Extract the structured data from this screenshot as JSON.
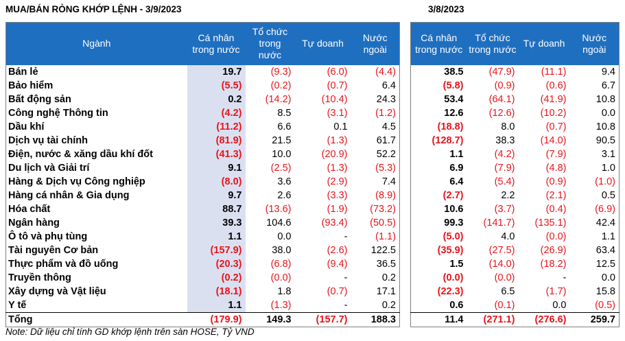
{
  "title_left": "MUA/BÁN RÒNG KHỚP LỆNH - 3/9/2023",
  "title_right": "3/8/2023",
  "headers_left": [
    "Ngành",
    "Cá nhân trong nước",
    "Tổ chức trong nước",
    "Tự doanh",
    "Nước ngoài"
  ],
  "headers_right": [
    "Cá nhân trong nước",
    "Tổ chức trong nước",
    "Tự doanh",
    "Nước ngoài"
  ],
  "rows": [
    {
      "sector": "Bán lẻ",
      "left": [
        "19.7",
        "(9.3)",
        "(6.0)",
        "(4.4)"
      ],
      "right": [
        "38.5",
        "(47.9)",
        "(11.1)",
        "9.4"
      ]
    },
    {
      "sector": "Bảo hiểm",
      "left": [
        "(5.5)",
        "(0.2)",
        "(0.7)",
        "6.4"
      ],
      "right": [
        "(5.8)",
        "(0.9)",
        "(0.6)",
        "6.7"
      ]
    },
    {
      "sector": "Bất động sản",
      "left": [
        "0.2",
        "(14.2)",
        "(10.4)",
        "24.3"
      ],
      "right": [
        "53.4",
        "(64.1)",
        "(41.9)",
        "10.8"
      ]
    },
    {
      "sector": "Công nghệ Thông tin",
      "left": [
        "(4.2)",
        "8.5",
        "(3.1)",
        "(1.2)"
      ],
      "right": [
        "12.6",
        "(12.6)",
        "(10.2)",
        "0.0"
      ]
    },
    {
      "sector": "Dầu khí",
      "left": [
        "(11.2)",
        "6.6",
        "0.1",
        "4.5"
      ],
      "right": [
        "(18.8)",
        "8.0",
        "(0.7)",
        "10.8"
      ]
    },
    {
      "sector": "Dịch vụ tài chính",
      "left": [
        "(81.9)",
        "21.5",
        "(1.3)",
        "61.7"
      ],
      "right": [
        "(128.7)",
        "38.3",
        "(14.0)",
        "90.5"
      ]
    },
    {
      "sector": "Điện, nước & xăng dầu khí đốt",
      "left": [
        "(41.3)",
        "10.0",
        "(20.9)",
        "52.2"
      ],
      "right": [
        "1.1",
        "(4.2)",
        "(7.9)",
        "3.1"
      ]
    },
    {
      "sector": "Du lịch và Giải trí",
      "left": [
        "9.1",
        "(2.5)",
        "(1.3)",
        "(5.3)"
      ],
      "right": [
        "6.9",
        "(7.9)",
        "(4.8)",
        "1.0"
      ]
    },
    {
      "sector": "Hàng & Dịch vụ Công nghiệp",
      "left": [
        "(8.0)",
        "3.6",
        "(2.9)",
        "7.4"
      ],
      "right": [
        "6.4",
        "(5.4)",
        "(0.9)",
        "(1.0)"
      ]
    },
    {
      "sector": "Hàng cá nhân & Gia dụng",
      "left": [
        "9.7",
        "2.6",
        "(3.3)",
        "(8.9)"
      ],
      "right": [
        "(2.7)",
        "2.2",
        "(2.1)",
        "0.5"
      ]
    },
    {
      "sector": "Hóa chất",
      "left": [
        "88.7",
        "(13.6)",
        "(1.9)",
        "(73.2)"
      ],
      "right": [
        "10.6",
        "(3.7)",
        "(0.4)",
        "(6.9)"
      ]
    },
    {
      "sector": "Ngân hàng",
      "left": [
        "39.3",
        "104.6",
        "(93.4)",
        "(50.5)"
      ],
      "right": [
        "99.3",
        "(141.7)",
        "(135.1)",
        "42.4"
      ]
    },
    {
      "sector": "Ô tô và phụ tùng",
      "left": [
        "1.1",
        "0.0",
        "-",
        "(1.1)"
      ],
      "right": [
        "(5.0)",
        "4.0",
        "(0.0)",
        "1.1"
      ]
    },
    {
      "sector": "Tài nguyên Cơ bản",
      "left": [
        "(157.9)",
        "38.0",
        "(2.6)",
        "122.5"
      ],
      "right": [
        "(35.9)",
        "(27.5)",
        "(26.9)",
        "63.4"
      ]
    },
    {
      "sector": "Thực phẩm và đồ uống",
      "left": [
        "(20.3)",
        "(6.8)",
        "(9.4)",
        "36.5"
      ],
      "right": [
        "1.5",
        "(14.0)",
        "(18.2)",
        "12.5"
      ]
    },
    {
      "sector": "Truyền thông",
      "left": [
        "(0.2)",
        "(0.0)",
        "-",
        "0.2"
      ],
      "right": [
        "(0.0)",
        "(0.0)",
        "-",
        "0.0"
      ]
    },
    {
      "sector": "Xây dựng và Vật liệu",
      "left": [
        "(18.1)",
        "1.8",
        "(0.7)",
        "17.1"
      ],
      "right": [
        "(22.3)",
        "6.5",
        "(1.7)",
        "15.8"
      ]
    },
    {
      "sector": "Y tế",
      "left": [
        "1.1",
        "(1.3)",
        "-",
        "0.2"
      ],
      "right": [
        "0.6",
        "(0.1)",
        "0.0",
        "(0.5)"
      ]
    }
  ],
  "total": {
    "label": "Tổng",
    "left": [
      "(179.9)",
      "149.3",
      "(157.7)",
      "188.3"
    ],
    "right": [
      "11.4",
      "(271.1)",
      "(276.6)",
      "259.7"
    ]
  },
  "note": "Note: Dữ liệu chỉ tính GD khớp lệnh trên sàn HOSE, Tỷ VND",
  "colors": {
    "header_bg": "#1f6fc0",
    "negative": "#e8141b",
    "highlight_col": "#dbe0f1"
  }
}
